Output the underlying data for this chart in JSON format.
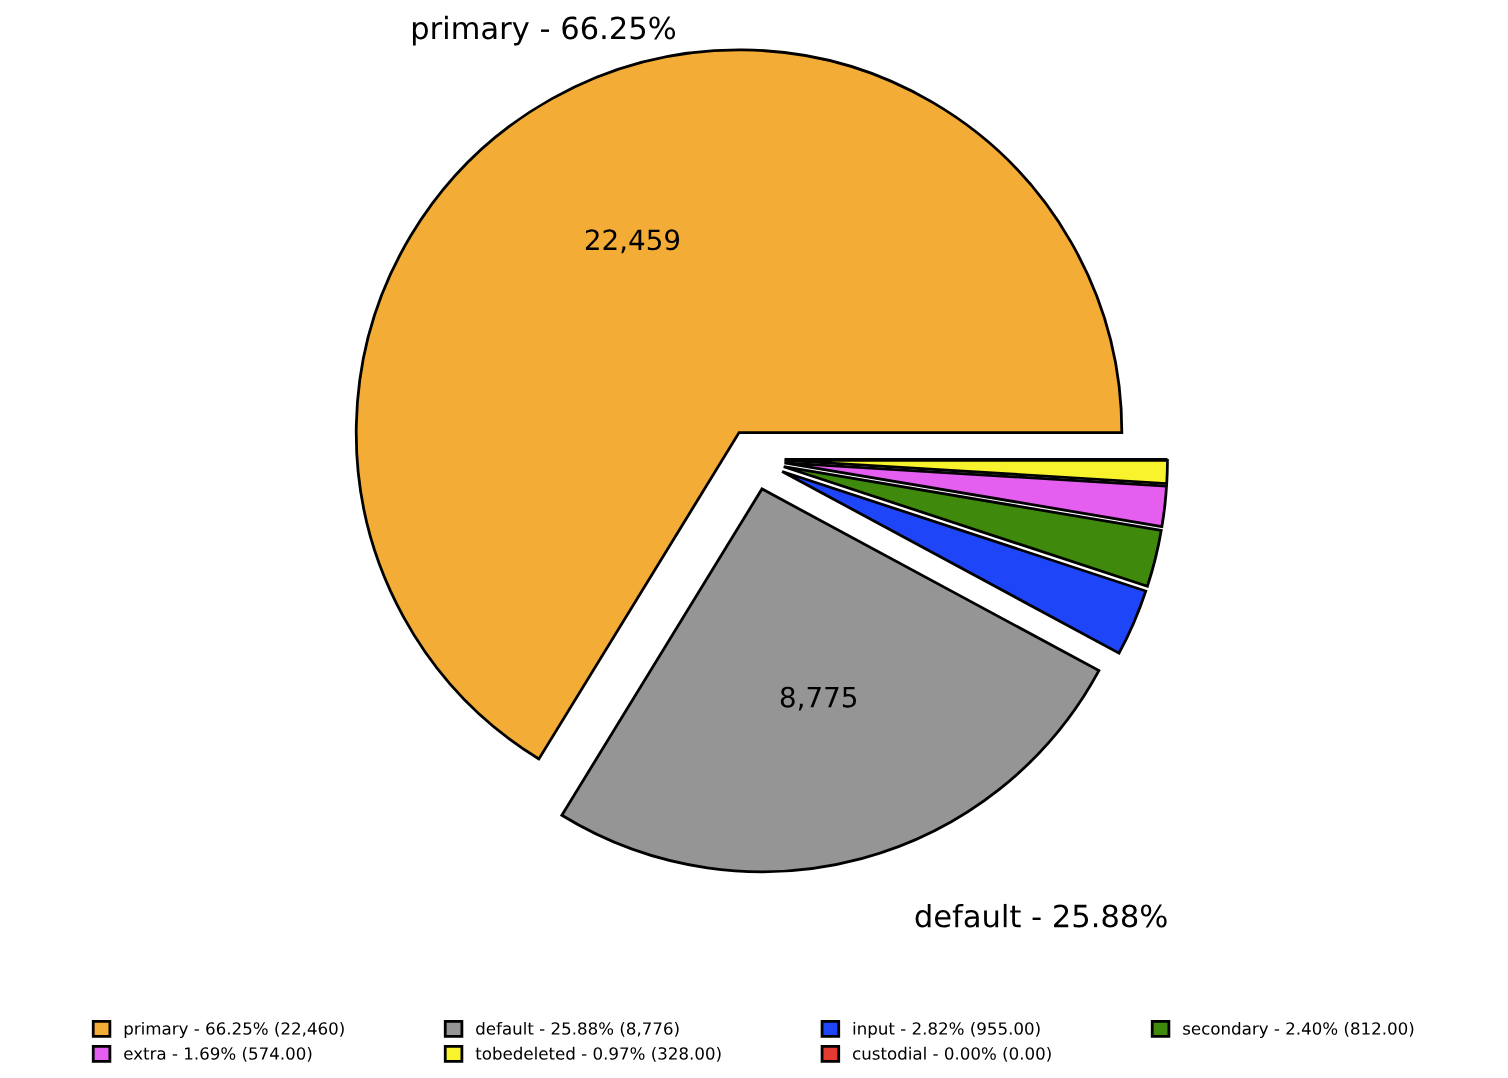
{
  "chart_data": {
    "type": "pie",
    "categories": [
      "primary - 66.25% (22,460)",
      "default - 25.88% (8,776)",
      "input - 2.82% (955.00)",
      "secondary - 2.40% (812.00)",
      "extra - 1.69% (574.00)",
      "tobedeleted - 0.97% (328.00)",
      "custodial - 0.00% (0.00)"
    ],
    "values": [
      22459,
      8775,
      955,
      812,
      574,
      328,
      0
    ],
    "colors": [
      "#f3ac35",
      "#959595",
      "#1f45f8",
      "#3f8a0c",
      "#e45ef0",
      "#f8f32c",
      "#e53a32"
    ],
    "value_labels": [
      "22,459",
      "8,775",
      null,
      null,
      null,
      null,
      null
    ],
    "annotations": [
      "primary - 66.25%",
      "default - 25.88%"
    ],
    "legend": "bottom"
  }
}
